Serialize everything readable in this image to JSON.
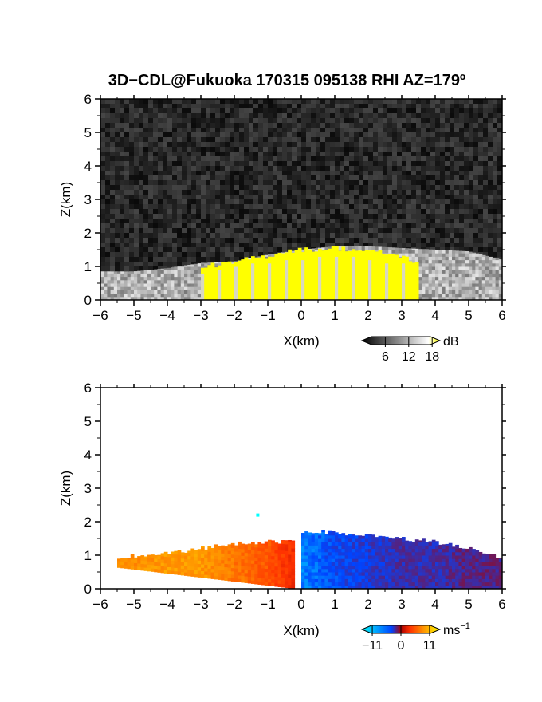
{
  "title": "3D−CDL@Fukuoka 170315 095138 RHI AZ=179º",
  "chart_data": [
    {
      "type": "heatmap",
      "variable": "reflectivity",
      "xlabel": "X(km)",
      "ylabel": "Z(km)",
      "xlim": [
        -6,
        6
      ],
      "ylim": [
        0,
        6
      ],
      "xticks": [
        "−6",
        "−5",
        "−4",
        "−3",
        "−2",
        "−1",
        "0",
        "1",
        "2",
        "3",
        "4",
        "5",
        "6"
      ],
      "yticks": [
        "0",
        "1",
        "2",
        "3",
        "4",
        "5",
        "6"
      ],
      "colorbar": {
        "unit": "dB",
        "ticks": [
          "6",
          "12",
          "18"
        ],
        "tick_values": [
          6,
          12,
          18
        ],
        "range": [
          0,
          20
        ],
        "colors": [
          "#000000",
          "#ffffff",
          "#ffff00"
        ]
      },
      "echo_top_profile": {
        "x": [
          -6,
          -5,
          -4,
          -3,
          -2,
          -1,
          0,
          1,
          2,
          3,
          4,
          5,
          6
        ],
        "z": [
          0.85,
          0.85,
          0.95,
          1.1,
          1.15,
          1.35,
          1.5,
          1.6,
          1.6,
          1.55,
          1.5,
          1.45,
          1.2
        ]
      },
      "strong_echo_profile": {
        "x": [
          -3,
          -2.5,
          -2,
          -1.5,
          -1,
          -0.5,
          0,
          0.5,
          1,
          1.5,
          2,
          2.5,
          3,
          3.5
        ],
        "z": [
          1.0,
          1.05,
          1.1,
          1.25,
          1.3,
          1.45,
          1.5,
          1.5,
          1.55,
          1.5,
          1.45,
          1.4,
          1.3,
          1.1
        ]
      },
      "background": "noise"
    },
    {
      "type": "heatmap",
      "variable": "doppler_velocity",
      "xlabel": "X(km)",
      "ylabel": "Z(km)",
      "xlim": [
        -6,
        6
      ],
      "ylim": [
        0,
        6
      ],
      "xticks": [
        "−6",
        "−5",
        "−4",
        "−3",
        "−2",
        "−1",
        "0",
        "1",
        "2",
        "3",
        "4",
        "5",
        "6"
      ],
      "yticks": [
        "0",
        "1",
        "2",
        "3",
        "4",
        "5",
        "6"
      ],
      "colorbar": {
        "unit": "ms",
        "unit_exponent": "−1",
        "ticks": [
          "−11",
          "0",
          "11"
        ],
        "tick_values": [
          -11,
          0,
          11
        ],
        "range": [
          -15,
          15
        ],
        "colors": [
          "#00ffff",
          "#0044ff",
          "#aa0000",
          "#ff3300",
          "#ff9900",
          "#ffff00"
        ]
      },
      "negative_side": {
        "x": [
          0,
          0.5,
          1,
          2,
          3,
          4,
          5,
          6
        ],
        "z_top": [
          1.7,
          1.7,
          1.65,
          1.6,
          1.5,
          1.4,
          1.2,
          0.9
        ],
        "velocity_ms": [
          -11,
          -10,
          -9,
          -8,
          -7,
          -7,
          -6,
          -6
        ]
      },
      "positive_side": {
        "x": [
          -5.5,
          -4,
          -3,
          -2,
          -1,
          -0.2
        ],
        "z_top": [
          0.95,
          1.05,
          1.2,
          1.35,
          1.4,
          1.4
        ],
        "velocity_ms": [
          8,
          9,
          9,
          7,
          5,
          2
        ]
      },
      "isolated_point": {
        "x": -1.3,
        "z": 2.2
      }
    }
  ]
}
